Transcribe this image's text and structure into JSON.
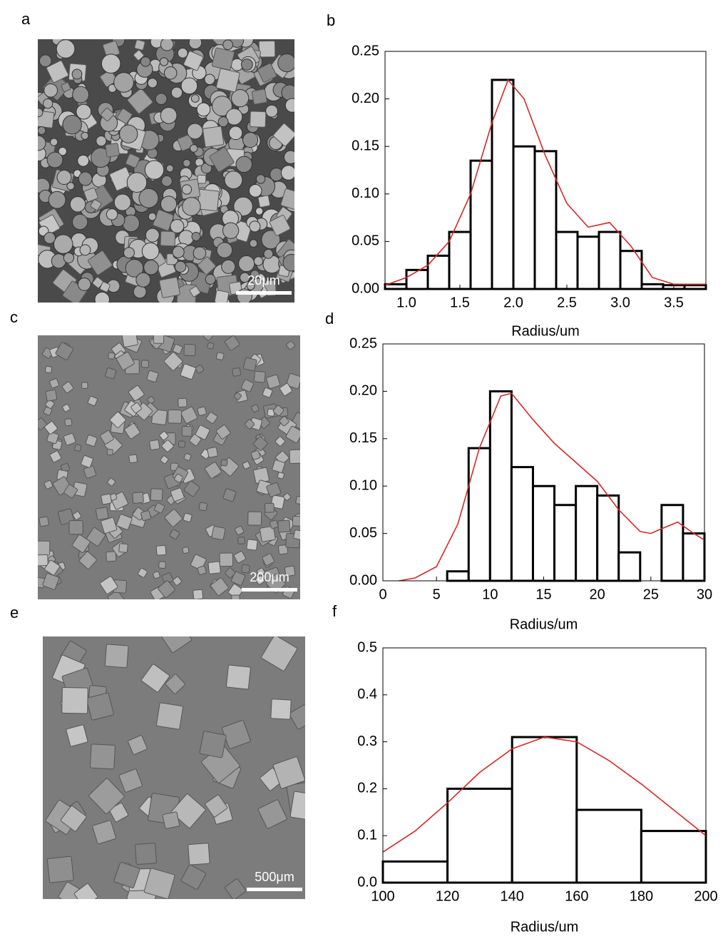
{
  "panels": [
    {
      "label": "a",
      "scale_bar": "20μm"
    },
    {
      "label": "c",
      "scale_bar": "200μm"
    },
    {
      "label": "e",
      "scale_bar": "500μm"
    }
  ],
  "chart_data": [
    {
      "type": "histogram",
      "panel_label": "b",
      "xlabel": "Radius/um",
      "color": "#000000",
      "bins": [
        0.8,
        1.0,
        1.2,
        1.4,
        1.6,
        1.8,
        2.0,
        2.2,
        2.4,
        2.6,
        2.8,
        3.0,
        3.2,
        3.4,
        3.6,
        3.8
      ],
      "values": [
        0.005,
        0.02,
        0.035,
        0.06,
        0.135,
        0.22,
        0.15,
        0.145,
        0.06,
        0.055,
        0.06,
        0.04,
        0.005,
        0.004,
        0.004
      ],
      "fit": {
        "color": "#d62728",
        "x": [
          0.8,
          1.0,
          1.2,
          1.4,
          1.6,
          1.8,
          1.95,
          2.1,
          2.3,
          2.5,
          2.7,
          2.9,
          3.1,
          3.3,
          3.5,
          3.8
        ],
        "values": [
          0.004,
          0.012,
          0.025,
          0.05,
          0.1,
          0.175,
          0.22,
          0.2,
          0.14,
          0.09,
          0.065,
          0.07,
          0.045,
          0.012,
          0.005,
          0.005
        ]
      },
      "xlim": [
        0.8,
        3.8
      ],
      "xticks": [
        {
          "value": 1,
          "label": "1.0"
        },
        1.5,
        {
          "value": 2,
          "label": "2.0"
        },
        2.5,
        {
          "value": 3,
          "label": "3.0"
        },
        3.5
      ],
      "ylim": [
        0,
        0.25
      ],
      "yticks": [
        {
          "value": 0,
          "label": "0.00"
        },
        0.05,
        {
          "value": 0.1,
          "label": "0.10"
        },
        0.15,
        {
          "value": 0.2,
          "label": "0.20"
        },
        0.25
      ]
    },
    {
      "type": "histogram",
      "panel_label": "d",
      "xlabel": "Radius/um",
      "color": "#000000",
      "bins": [
        6,
        8,
        10,
        12,
        14,
        16,
        18,
        20,
        22,
        24,
        26,
        28,
        30
      ],
      "values": [
        0.01,
        0.14,
        0.2,
        0.12,
        0.1,
        0.08,
        0.1,
        0.09,
        0.03,
        0,
        0.08,
        0.05
      ],
      "fit": {
        "color": "#d62728",
        "x": [
          1.5,
          3,
          5,
          7,
          9,
          11,
          12,
          14,
          16,
          18,
          20,
          22,
          24,
          25,
          26,
          27.5,
          29,
          30
        ],
        "values": [
          0.0,
          0.003,
          0.015,
          0.06,
          0.14,
          0.195,
          0.198,
          0.17,
          0.145,
          0.125,
          0.105,
          0.075,
          0.052,
          0.05,
          0.055,
          0.062,
          0.05,
          0.043
        ]
      },
      "xlim": [
        0,
        30
      ],
      "xticks": [
        0,
        5,
        10,
        15,
        20,
        25,
        30
      ],
      "ylim": [
        0,
        0.25
      ],
      "yticks": [
        {
          "value": 0,
          "label": "0.00"
        },
        0.05,
        {
          "value": 0.1,
          "label": "0.10"
        },
        0.15,
        {
          "value": 0.2,
          "label": "0.20"
        },
        0.25
      ]
    },
    {
      "type": "histogram",
      "panel_label": "f",
      "xlabel": "Radius/um",
      "color": "#000000",
      "bins": [
        100,
        120,
        140,
        160,
        180,
        200
      ],
      "values": [
        0.045,
        0.2,
        0.31,
        0.155,
        0.11
      ],
      "fit": {
        "color": "#d62728",
        "x": [
          100,
          110,
          120,
          130,
          140,
          150,
          160,
          170,
          180,
          190,
          200
        ],
        "values": [
          0.065,
          0.11,
          0.17,
          0.235,
          0.285,
          0.31,
          0.3,
          0.26,
          0.21,
          0.155,
          0.1
        ]
      },
      "xlim": [
        100,
        200
      ],
      "xticks": [
        100,
        120,
        140,
        160,
        180,
        200
      ],
      "ylim": [
        0,
        0.5
      ],
      "yticks": [
        {
          "value": 0,
          "label": "0.0"
        },
        0.1,
        0.2,
        0.3,
        0.4,
        0.5
      ]
    }
  ]
}
